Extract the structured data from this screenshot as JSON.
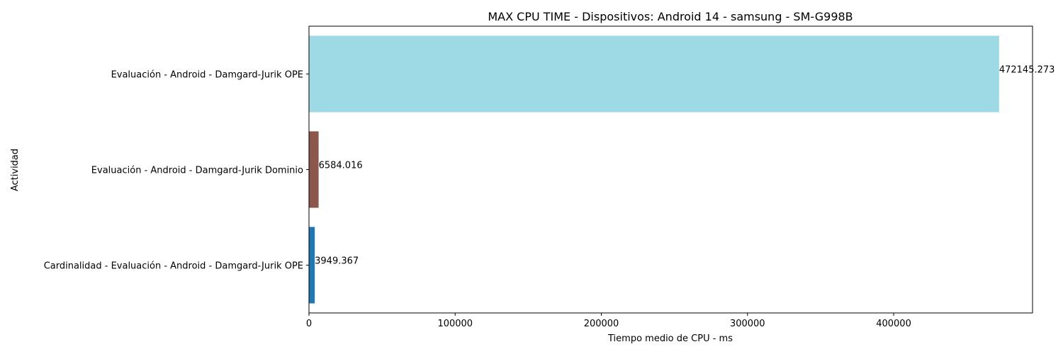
{
  "chart_data": {
    "type": "bar",
    "orientation": "horizontal",
    "title": "MAX CPU TIME - Dispositivos: Android 14 - samsung - SM-G998B",
    "xlabel": "Tiempo medio de CPU - ms",
    "ylabel": "Actividad",
    "categories": [
      "Cardinalidad - Evaluación - Android - Damgard-Jurik OPE",
      "Evaluación - Android - Damgard-Jurik Dominio",
      "Evaluación - Android - Damgard-Jurik OPE"
    ],
    "values": [
      3949.367,
      6584.016,
      472145.273
    ],
    "value_labels": [
      "3949.367",
      "6584.016",
      "472145.273"
    ],
    "colors": [
      "#1f77b4",
      "#8c564b",
      "#9edae5"
    ],
    "xlim": [
      0,
      495000
    ],
    "xticks": [
      0,
      100000,
      200000,
      300000,
      400000
    ],
    "xtick_labels": [
      "0",
      "100000",
      "200000",
      "300000",
      "400000"
    ],
    "grid": false,
    "legend": "none"
  }
}
